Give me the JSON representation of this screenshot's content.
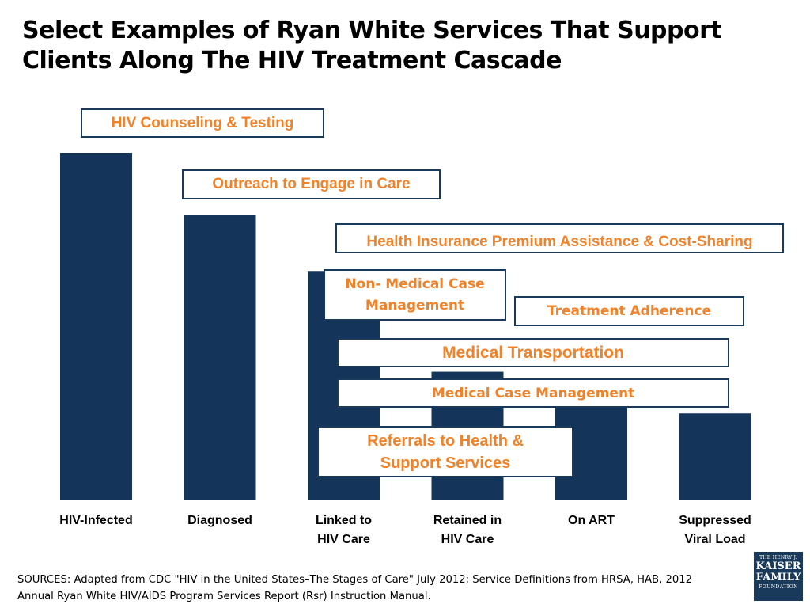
{
  "slide": {
    "title": "Select Examples of Ryan White Services That Support Clients Along The HIV Treatment Cascade",
    "sources": "SOURCES: Adapted from CDC \"HIV in the United States–The Stages of Care\"  July 2012; Service Definitions from HRSA, HAB, 2012 Annual Ryan White HIV/AIDS Program Services Report (Rsr) Instruction Manual.",
    "logo": {
      "line1": "THE HENRY J.",
      "line2": "KAISER",
      "line3": "FAMILY",
      "line4": "FOUNDATION"
    }
  },
  "colors": {
    "bar": "#14345a",
    "box_border": "#1a3a5c",
    "box_text": "#f0822a"
  },
  "chart_data": {
    "type": "bar",
    "categories": [
      "HIV-Infected",
      "Diagnosed",
      "Linked to HIV Care",
      "Retained in HIV Care",
      "On ART",
      "Suppressed Viral Load"
    ],
    "category_lines": [
      [
        "HIV-Infected"
      ],
      [
        "Diagnosed"
      ],
      [
        "Linked to",
        "HIV Care"
      ],
      [
        "Retained in",
        "HIV Care"
      ],
      [
        "On ART"
      ],
      [
        "Suppressed",
        "Viral Load"
      ]
    ],
    "values": [
      100,
      82,
      66,
      37,
      33,
      25
    ],
    "ylim": [
      0,
      100
    ],
    "grid": false,
    "legend": "none"
  },
  "services": [
    {
      "label": "HIV  Counseling & Testing"
    },
    {
      "label": "Outreach to Engage in Care"
    },
    {
      "label": "Health Insurance Premium Assistance & Cost-Sharing"
    },
    {
      "label": "Non- Medical Case Management"
    },
    {
      "label": "Treatment Adherence"
    },
    {
      "label": "Medical Transportation"
    },
    {
      "label": "Medical Case Management"
    },
    {
      "label": "Referrals to Health & Support Services"
    }
  ]
}
